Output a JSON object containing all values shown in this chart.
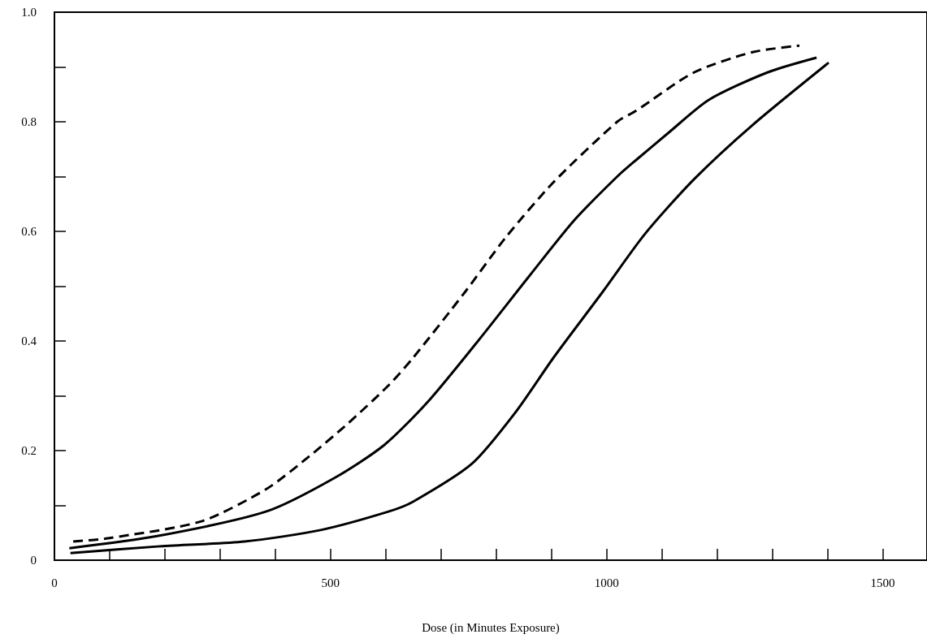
{
  "chart_data": {
    "type": "line",
    "xlabel": "Dose (in Minutes Exposure)",
    "xlim": [
      0,
      1580
    ],
    "xticks": [
      0,
      {
        "value": 100,
        "label": null
      },
      {
        "value": 200,
        "label": null
      },
      {
        "value": 300,
        "label": null
      },
      {
        "value": 400,
        "label": null
      },
      500,
      {
        "value": 600,
        "label": null
      },
      {
        "value": 700,
        "label": null
      },
      {
        "value": 800,
        "label": null
      },
      {
        "value": 900,
        "label": null
      },
      1000,
      {
        "value": 1100,
        "label": null
      },
      {
        "value": 1200,
        "label": null
      },
      {
        "value": 1300,
        "label": null
      },
      {
        "value": 1400,
        "label": null
      },
      1500
    ],
    "ylim": [
      0,
      1
    ],
    "yticks": [
      0,
      {
        "value": 0.1,
        "label": null
      },
      0.2,
      {
        "value": 0.3,
        "label": null
      },
      0.4,
      {
        "value": 0.5,
        "label": null
      },
      0.6,
      {
        "value": 0.7,
        "label": null
      },
      0.8,
      {
        "value": 0.9,
        "label": null
      },
      {
        "value": 1,
        "label": "1.0"
      }
    ],
    "grid": false,
    "marker": "none",
    "series": [
      {
        "color": "#000000",
        "line_style": "dashed",
        "x": [
          34,
          97,
          266,
          384,
          462,
          532,
          606,
          650,
          744,
          818,
          904,
          1019,
          1053,
          1158,
          1264,
          1349
        ],
        "values": [
          0.034,
          0.04,
          0.071,
          0.13,
          0.19,
          0.25,
          0.32,
          0.37,
          0.49,
          0.59,
          0.69,
          0.8,
          0.82,
          0.89,
          0.927,
          0.939
        ]
      },
      {
        "color": "#000000",
        "line_style": "solid",
        "x": [
          27,
          186,
          384,
          507,
          597,
          677,
          767,
          861,
          941,
          1019,
          1053,
          1112,
          1185,
          1291,
          1380
        ],
        "values": [
          0.022,
          0.044,
          0.089,
          0.15,
          0.21,
          0.29,
          0.4,
          0.52,
          0.62,
          0.7,
          0.73,
          0.78,
          0.84,
          0.89,
          0.917
        ]
      },
      {
        "color": "#000000",
        "line_style": "solid",
        "x": [
          29,
          186,
          344,
          482,
          606,
          650,
          756,
          835,
          904,
          993,
          1069,
          1158,
          1264,
          1402
        ],
        "values": [
          0.013,
          0.025,
          0.034,
          0.055,
          0.089,
          0.107,
          0.176,
          0.27,
          0.37,
          0.49,
          0.595,
          0.695,
          0.794,
          0.908
        ]
      }
    ]
  }
}
